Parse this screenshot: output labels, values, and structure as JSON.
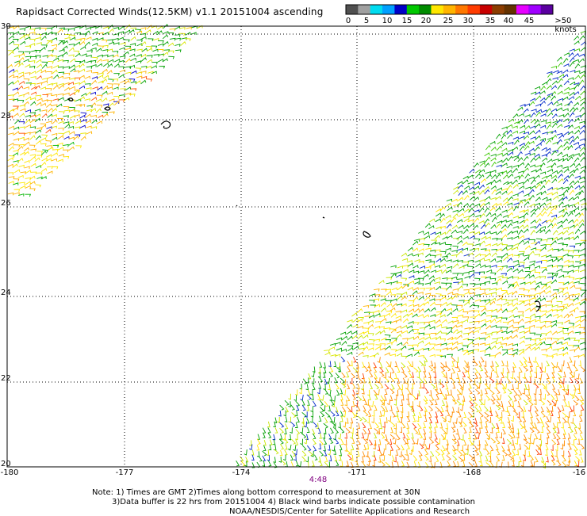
{
  "title": "Rapidsact Corrected Winds(12.5KM) v1.1 20151004 ascending",
  "scale": {
    "labels": [
      "0",
      "5",
      "10",
      "15",
      "20",
      "25",
      "30",
      "35",
      "40",
      "45",
      ">50 knots"
    ],
    "colors": [
      "#505050",
      "#a0a0a0",
      "#00dcf0",
      "#00a0ff",
      "#0000c8",
      "#00c800",
      "#008c00",
      "#ffe600",
      "#ffb400",
      "#ff7800",
      "#ff3c00",
      "#c80000",
      "#8c3c00",
      "#643200",
      "#e600ff",
      "#a000ff",
      "#5a00a0"
    ]
  },
  "axes": {
    "y_labels": [
      "30",
      "28",
      "26",
      "24",
      "22",
      "20"
    ],
    "x_labels": [
      "-180",
      "-177",
      "-174",
      "-171",
      "-168",
      "-16"
    ]
  },
  "time_label": "4:48",
  "notes": {
    "line1": "Note: 1) Times are GMT 2)Times along bottom correspond to measurement at 30N",
    "line2": "3)Data buffer is 22 hrs from 20151004 4) Black wind barbs indicate possible contamination",
    "line3": "NOAA/NESDIS/Center for Satellite Applications and Research"
  }
}
